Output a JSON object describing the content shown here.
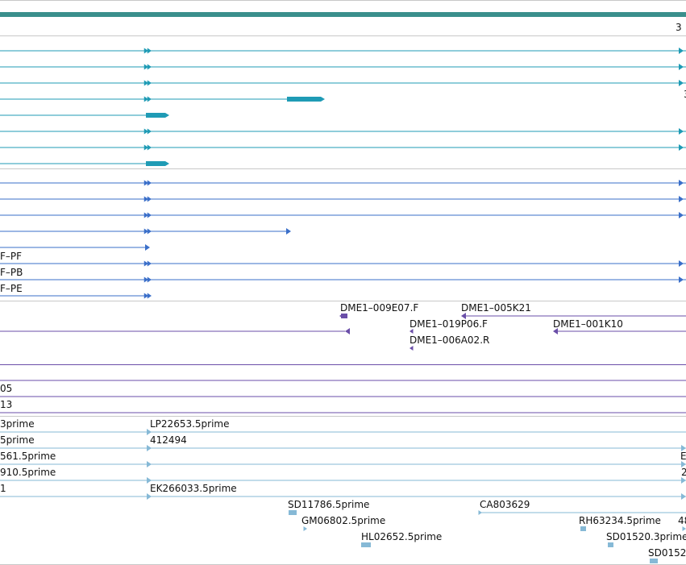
{
  "colors": {
    "chromosome": "#3a8f8c",
    "transcript": "#1f9bb5",
    "protein": "#3a6fc9",
    "clone": "#6a4ea8",
    "est": "#86b9d6",
    "divider": "#c8c8c8"
  },
  "labels": {
    "top_right_digit": "3",
    "mrna_right_digit": "3",
    "protein_pf": "F–PF",
    "protein_pb": "F–PB",
    "protein_pe": "F–PE",
    "clone_009e07": "DME1–009E07.F",
    "clone_005k21": "DME1–005K21",
    "clone_019p06": "DME1–019P06.F",
    "clone_001k10": "DME1–001K10",
    "clone_006a02": "DME1–006A02.R",
    "misc_05": "05",
    "misc_13": "13",
    "est_3prime": "3prime",
    "est_lp22653": "LP22653.5prime",
    "est_5prime": "5prime",
    "est_412494": "412494",
    "est_561": "561.5prime",
    "est_right_b": "E",
    "est_910": "910.5prime",
    "est_right_2": "2",
    "est_1": "1",
    "est_ek266033": "EK266033.5prime",
    "est_sd11786": "SD11786.5prime",
    "est_ca803629": "CA803629",
    "est_gm06802": "GM06802.5prime",
    "est_rh63234": "RH63234.5prime",
    "est_48": "48",
    "est_hl02652": "HL02652.5prime",
    "est_sd01520": "SD01520.3prime",
    "est_sd0152": "SD0152"
  }
}
